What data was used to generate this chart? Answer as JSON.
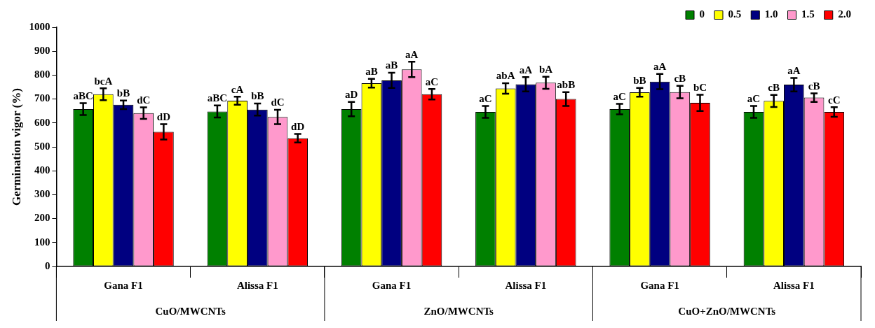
{
  "chart_data": {
    "type": "bar",
    "ylabel": "Germination vigor (%)",
    "categories": [
      "Gana F1",
      "Alissa F1",
      "Gana F1",
      "Alissa F1",
      "Gana F1",
      "Alissa F1"
    ],
    "annotations": [
      "CuO/MWCNTs",
      "ZnO/MWCNTs",
      "CuO+ZnO/MWCNTs"
    ],
    "series": [
      {
        "name": "0",
        "color": "#008000",
        "values": [
          658,
          648,
          658,
          646,
          658,
          646
        ],
        "errors": [
          25,
          25,
          30,
          25,
          22,
          25
        ],
        "value_labels": [
          "aBC",
          "aBC",
          "aD",
          "aC",
          "aC",
          "aC"
        ]
      },
      {
        "name": "0.5",
        "color": "#ffff00",
        "values": [
          720,
          693,
          766,
          744,
          728,
          692
        ],
        "errors": [
          25,
          17,
          18,
          22,
          18,
          25
        ],
        "value_labels": [
          "bcA",
          "cA",
          "aB",
          "abA",
          "bB",
          "cB"
        ]
      },
      {
        "name": "1.0",
        "color": "#000080",
        "values": [
          676,
          656,
          778,
          762,
          773,
          760
        ],
        "errors": [
          18,
          25,
          32,
          30,
          32,
          28
        ],
        "value_labels": [
          "bB",
          "bB",
          "aB",
          "aA",
          "aA",
          "aA"
        ]
      },
      {
        "name": "1.5",
        "color": "#ff99cc",
        "values": [
          641,
          625,
          824,
          768,
          729,
          706
        ],
        "errors": [
          24,
          30,
          32,
          25,
          26,
          18
        ],
        "value_labels": [
          "dC",
          "dC",
          "aA",
          "bA",
          "cB",
          "cB"
        ]
      },
      {
        "name": "2.0",
        "color": "#ff0000",
        "values": [
          563,
          536,
          720,
          700,
          684,
          646
        ],
        "errors": [
          32,
          18,
          22,
          29,
          34,
          20
        ],
        "value_labels": [
          "dD",
          "dD",
          "aC",
          "abB",
          "bC",
          "cC"
        ]
      }
    ],
    "ylim": [
      0,
      1000
    ],
    "yticks": [
      0,
      100,
      200,
      300,
      400,
      500,
      600,
      700,
      800,
      900,
      1000
    ],
    "grid": false,
    "legend": "top right"
  }
}
